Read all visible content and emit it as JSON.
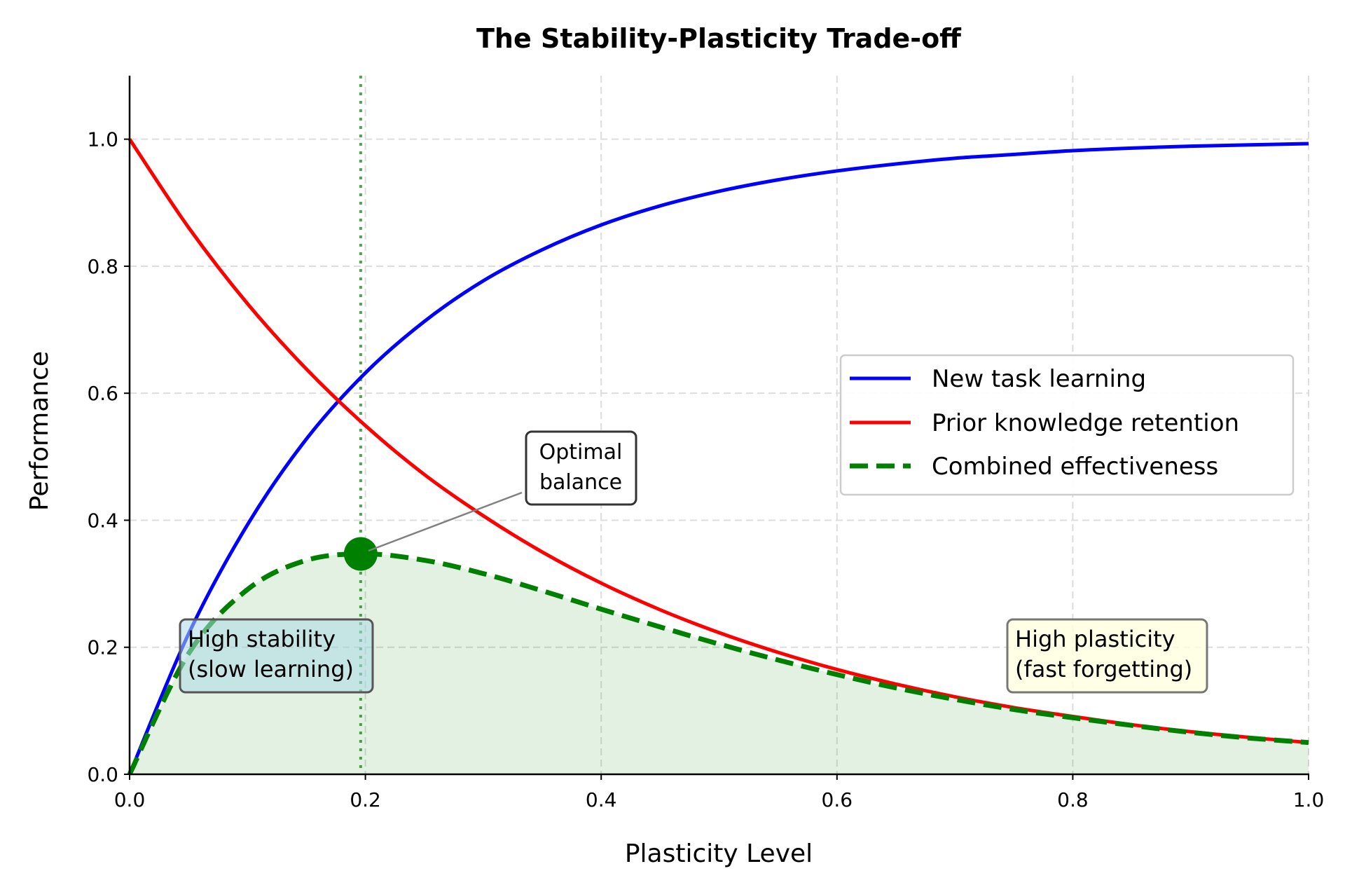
{
  "chart_data": {
    "type": "line",
    "title": "The Stability-Plasticity Trade-off",
    "xlabel": "Plasticity Level",
    "ylabel": "Performance",
    "xlim": [
      0,
      1
    ],
    "ylim": [
      0,
      1.1
    ],
    "xticks": [
      "0.0",
      "0.2",
      "0.4",
      "0.6",
      "0.8",
      "1.0"
    ],
    "yticks": [
      "0.0",
      "0.2",
      "0.4",
      "0.6",
      "0.8",
      "1.0"
    ],
    "grid": true,
    "legend_position": "center-right",
    "x": [
      0,
      0.05,
      0.1,
      0.15,
      0.2,
      0.25,
      0.3,
      0.35,
      0.4,
      0.45,
      0.5,
      0.55,
      0.6,
      0.65,
      0.7,
      0.75,
      0.8,
      0.85,
      0.9,
      0.95,
      1.0
    ],
    "series": [
      {
        "name": "New task learning",
        "color": "#0000ff",
        "style": "solid",
        "values": [
          0,
          0.221,
          0.393,
          0.528,
          0.632,
          0.713,
          0.777,
          0.826,
          0.865,
          0.895,
          0.918,
          0.936,
          0.95,
          0.961,
          0.97,
          0.976,
          0.982,
          0.986,
          0.989,
          0.991,
          0.993
        ]
      },
      {
        "name": "Prior knowledge retention",
        "color": "#ff0000",
        "style": "solid",
        "values": [
          1.0,
          0.861,
          0.741,
          0.638,
          0.549,
          0.472,
          0.407,
          0.35,
          0.301,
          0.259,
          0.223,
          0.192,
          0.165,
          0.142,
          0.122,
          0.105,
          0.091,
          0.078,
          0.067,
          0.058,
          0.05
        ]
      },
      {
        "name": "Combined effectiveness",
        "color": "#008000",
        "style": "dashed",
        "filled": true,
        "values": [
          0,
          0.19,
          0.291,
          0.337,
          0.347,
          0.337,
          0.316,
          0.289,
          0.26,
          0.232,
          0.205,
          0.18,
          0.157,
          0.136,
          0.118,
          0.102,
          0.089,
          0.077,
          0.066,
          0.057,
          0.05
        ]
      }
    ],
    "optimal_point": {
      "x": 0.196,
      "y": 0.347,
      "color": "#008000"
    },
    "annotations": {
      "optimal": [
        "Optimal",
        "balance"
      ],
      "stability": [
        "High stability",
        "(slow learning)"
      ],
      "plasticity": [
        "High plasticity",
        "(fast forgetting)"
      ]
    },
    "colors": {
      "stability_box": "#add8e6",
      "plasticity_box": "#ffffe0"
    }
  }
}
